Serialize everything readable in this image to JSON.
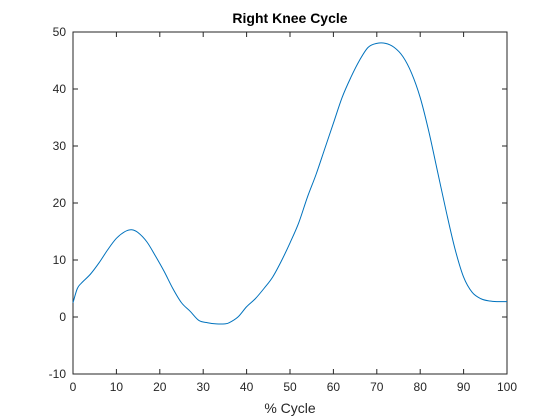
{
  "chart_data": {
    "type": "line",
    "title": "Right Knee Cycle",
    "xlabel": "% Cycle",
    "ylabel": "",
    "xlim": [
      0,
      100
    ],
    "ylim": [
      -10,
      50
    ],
    "xticks": [
      0,
      10,
      20,
      30,
      40,
      50,
      60,
      70,
      80,
      90,
      100
    ],
    "yticks": [
      -10,
      0,
      10,
      20,
      30,
      40,
      50
    ],
    "grid": false,
    "line_color": "#0072BD",
    "series": [
      {
        "x": [
          0,
          1,
          2,
          4,
          6,
          8,
          10,
          12,
          13.5,
          15,
          17,
          19,
          21,
          23,
          25,
          27,
          29,
          31,
          33,
          35,
          36,
          38,
          40,
          42,
          44,
          46,
          48,
          50,
          52,
          54,
          56,
          58,
          60,
          62,
          64,
          66,
          68,
          70,
          72,
          74,
          76,
          78,
          80,
          82,
          84,
          86,
          88,
          90,
          92,
          94,
          96,
          98,
          100
        ],
        "y": [
          2.5,
          5,
          6,
          7.5,
          9.5,
          11.8,
          13.8,
          15,
          15.3,
          14.8,
          13.2,
          10.7,
          8,
          5,
          2.5,
          1,
          -0.6,
          -1,
          -1.2,
          -1.2,
          -1,
          0,
          1.8,
          3.2,
          5,
          7,
          9.8,
          13,
          16.5,
          21,
          25,
          29.5,
          34,
          38.5,
          42,
          45,
          47.3,
          48,
          48,
          47.3,
          45.7,
          42.8,
          38.5,
          32.5,
          25.5,
          18.5,
          12,
          7,
          4.3,
          3.2,
          2.8,
          2.7,
          2.7
        ]
      }
    ]
  }
}
